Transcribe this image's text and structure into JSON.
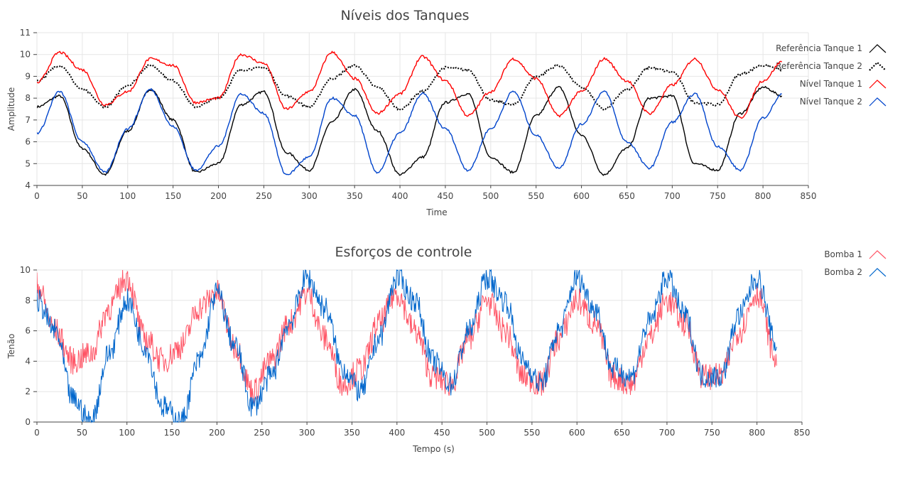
{
  "chart_data": [
    {
      "type": "line",
      "title": "Níveis dos Tanques",
      "xlabel": "Time",
      "ylabel": "Amplitude",
      "xlim": [
        0,
        850
      ],
      "ylim": [
        4,
        11
      ],
      "xticks": [
        "0",
        "50",
        "100",
        "150",
        "200",
        "250",
        "300",
        "350",
        "400",
        "450",
        "500",
        "550",
        "600",
        "650",
        "700",
        "750",
        "800",
        "850"
      ],
      "yticks": [
        "4",
        "5",
        "6",
        "7",
        "8",
        "9",
        "10",
        "11"
      ],
      "grid": true,
      "legend_position": "top-right",
      "series": [
        {
          "name": "Referência Tanque 1",
          "color": "#000000",
          "style": "solid",
          "x": [
            0,
            25,
            50,
            75,
            100,
            125,
            150,
            175,
            200,
            225,
            250,
            275,
            300,
            325,
            350,
            375,
            400,
            425,
            450,
            475,
            500,
            525,
            550,
            575,
            600,
            625,
            650,
            675,
            700,
            725,
            750,
            775,
            800,
            822
          ],
          "y": [
            7.6,
            8.1,
            5.7,
            4.5,
            6.5,
            8.4,
            7.0,
            4.6,
            5.0,
            7.7,
            8.3,
            5.5,
            4.7,
            6.9,
            8.4,
            6.5,
            4.5,
            5.3,
            7.8,
            8.2,
            5.3,
            4.6,
            7.2,
            8.5,
            6.3,
            4.5,
            5.7,
            8.0,
            8.1,
            5.0,
            4.7,
            7.3,
            8.5,
            8.1
          ]
        },
        {
          "name": "Referência Tanque 2",
          "color": "#000000",
          "style": "dotted",
          "x": [
            0,
            25,
            50,
            75,
            100,
            125,
            150,
            175,
            200,
            225,
            250,
            275,
            300,
            325,
            350,
            375,
            400,
            425,
            450,
            475,
            500,
            525,
            550,
            575,
            600,
            625,
            650,
            675,
            700,
            725,
            750,
            775,
            800,
            822
          ],
          "y": [
            8.8,
            9.5,
            8.4,
            7.6,
            8.6,
            9.5,
            8.8,
            7.6,
            8.0,
            9.3,
            9.4,
            8.1,
            7.6,
            8.9,
            9.5,
            8.5,
            7.5,
            8.3,
            9.4,
            9.3,
            7.9,
            7.7,
            9.0,
            9.5,
            8.5,
            7.5,
            8.4,
            9.4,
            9.2,
            7.8,
            7.7,
            9.1,
            9.5,
            9.3
          ]
        },
        {
          "name": "Nível Tanque 1",
          "color": "#ff0000",
          "style": "solid",
          "x": [
            0,
            25,
            50,
            75,
            100,
            125,
            150,
            175,
            200,
            225,
            250,
            275,
            300,
            325,
            350,
            375,
            400,
            425,
            450,
            475,
            500,
            525,
            550,
            575,
            600,
            625,
            650,
            675,
            700,
            725,
            750,
            775,
            800,
            822
          ],
          "y": [
            8.7,
            10.1,
            9.3,
            7.7,
            8.3,
            9.8,
            9.5,
            7.8,
            8.0,
            10.0,
            9.6,
            7.5,
            8.3,
            10.1,
            8.9,
            7.3,
            8.2,
            9.9,
            8.8,
            7.2,
            8.3,
            9.8,
            8.9,
            7.2,
            8.3,
            9.8,
            8.8,
            7.3,
            8.6,
            9.8,
            8.4,
            7.1,
            8.8,
            9.7
          ]
        },
        {
          "name": "Nível Tanque 2",
          "color": "#0044cc",
          "style": "solid",
          "x": [
            0,
            25,
            50,
            75,
            100,
            125,
            150,
            175,
            200,
            225,
            250,
            275,
            300,
            325,
            350,
            375,
            400,
            425,
            450,
            475,
            500,
            525,
            550,
            575,
            600,
            625,
            650,
            675,
            700,
            725,
            750,
            775,
            800,
            822
          ],
          "y": [
            6.4,
            8.3,
            6.0,
            4.6,
            6.6,
            8.4,
            6.7,
            4.7,
            5.8,
            8.2,
            7.3,
            4.5,
            5.3,
            8.0,
            7.2,
            4.6,
            6.4,
            8.2,
            6.6,
            4.7,
            6.6,
            8.3,
            6.3,
            4.8,
            6.8,
            8.3,
            6.0,
            4.8,
            6.9,
            8.2,
            5.8,
            4.7,
            7.1,
            8.2
          ]
        }
      ]
    },
    {
      "type": "line",
      "title": "Esforços de controle",
      "xlabel": "Tempo (s)",
      "ylabel": "Tenão",
      "xlim": [
        0,
        850
      ],
      "ylim": [
        0,
        10
      ],
      "xticks": [
        "0",
        "50",
        "100",
        "150",
        "200",
        "250",
        "300",
        "350",
        "400",
        "450",
        "500",
        "550",
        "600",
        "650",
        "700",
        "750",
        "800",
        "850"
      ],
      "yticks": [
        "0",
        "2",
        "4",
        "6",
        "8",
        "10"
      ],
      "grid": true,
      "legend_position": "top-right",
      "series": [
        {
          "name": "Bomba 1",
          "color": "#ff5566",
          "style": "solid",
          "x": [
            0,
            20,
            40,
            60,
            80,
            100,
            120,
            140,
            160,
            180,
            200,
            220,
            240,
            260,
            280,
            300,
            320,
            340,
            360,
            380,
            400,
            420,
            440,
            460,
            480,
            500,
            520,
            540,
            560,
            580,
            600,
            620,
            640,
            660,
            680,
            700,
            720,
            740,
            760,
            780,
            800,
            822
          ],
          "y": [
            9.0,
            6.0,
            4.0,
            4.5,
            7.5,
            9.5,
            5.5,
            4.0,
            5.0,
            7.5,
            8.5,
            5.0,
            2.0,
            4.0,
            6.5,
            8.5,
            5.5,
            2.5,
            3.5,
            6.5,
            8.5,
            6.0,
            3.0,
            2.5,
            5.5,
            8.0,
            6.0,
            3.0,
            2.5,
            5.5,
            8.0,
            6.5,
            3.0,
            2.5,
            5.5,
            8.0,
            6.5,
            3.0,
            3.0,
            6.0,
            8.5,
            4.0
          ]
        },
        {
          "name": "Bomba 2",
          "color": "#0066cc",
          "style": "solid",
          "x": [
            0,
            20,
            40,
            60,
            80,
            100,
            120,
            140,
            160,
            180,
            200,
            220,
            240,
            260,
            280,
            300,
            320,
            340,
            360,
            380,
            400,
            420,
            440,
            460,
            480,
            500,
            520,
            540,
            560,
            580,
            600,
            620,
            640,
            660,
            680,
            700,
            720,
            740,
            760,
            780,
            800,
            822
          ],
          "y": [
            8.0,
            6.0,
            1.5,
            0.0,
            4.5,
            8.0,
            5.0,
            1.0,
            0.0,
            4.0,
            8.5,
            5.0,
            1.0,
            3.0,
            6.5,
            9.5,
            7.5,
            3.5,
            2.0,
            5.5,
            9.5,
            8.0,
            4.0,
            2.5,
            6.0,
            9.5,
            8.0,
            4.0,
            2.5,
            6.0,
            9.5,
            7.5,
            3.5,
            3.0,
            6.5,
            9.5,
            7.0,
            3.0,
            3.0,
            7.0,
            9.5,
            5.0
          ]
        }
      ]
    }
  ]
}
